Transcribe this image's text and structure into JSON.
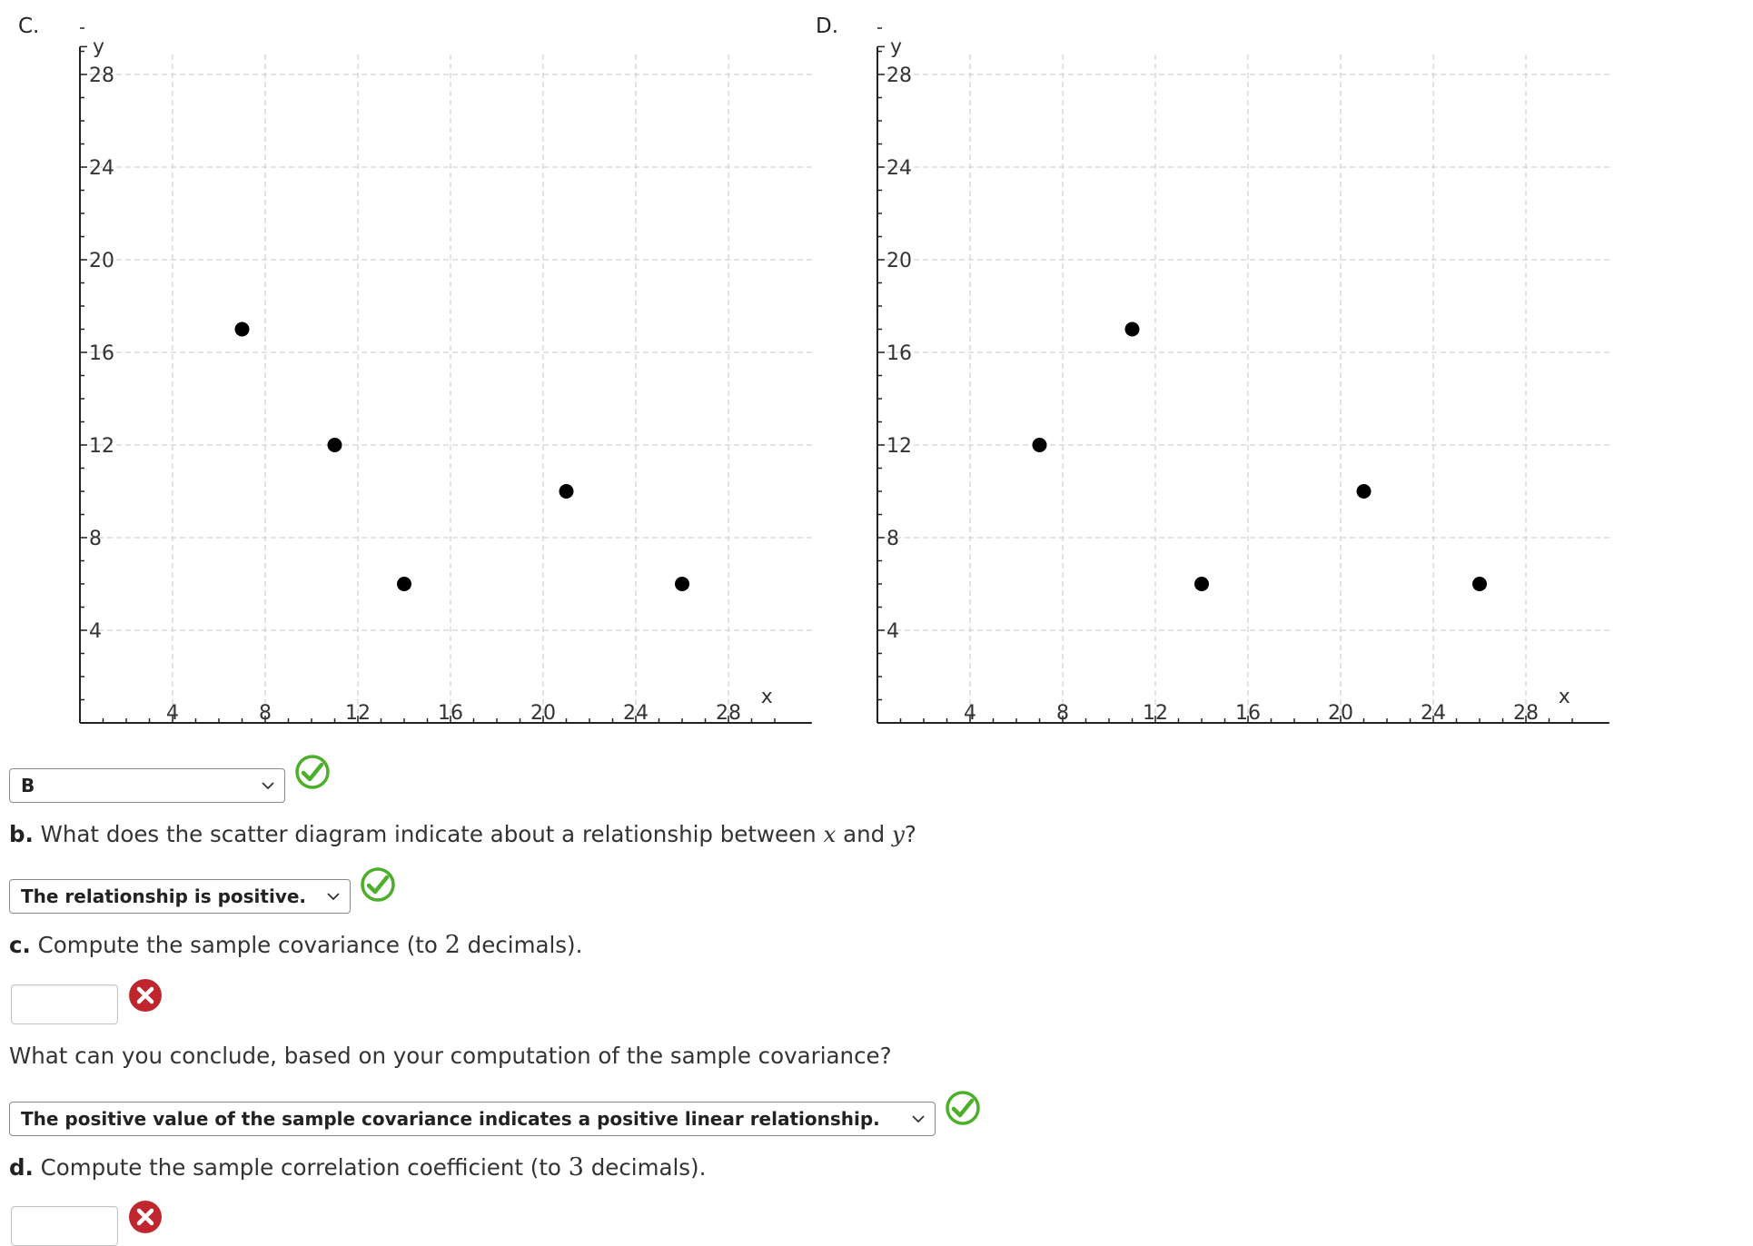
{
  "charts": {
    "C": {
      "label": "C.",
      "ylabel": "y",
      "xlabel": "x"
    },
    "D": {
      "label": "D.",
      "ylabel": "y",
      "xlabel": "x"
    }
  },
  "chart_data": [
    {
      "type": "scatter",
      "title": "C.",
      "xlabel": "x",
      "ylabel": "y",
      "xlim": [
        0,
        30
      ],
      "ylim": [
        0,
        30
      ],
      "xticks": [
        4,
        8,
        12,
        16,
        20,
        24,
        28
      ],
      "yticks": [
        4,
        8,
        12,
        16,
        20,
        24,
        28
      ],
      "grid": true,
      "points": [
        [
          7,
          17
        ],
        [
          11,
          12
        ],
        [
          14,
          6
        ],
        [
          21,
          10
        ],
        [
          26,
          6
        ]
      ]
    },
    {
      "type": "scatter",
      "title": "D.",
      "xlabel": "x",
      "ylabel": "y",
      "xlim": [
        0,
        30
      ],
      "ylim": [
        0,
        30
      ],
      "xticks": [
        4,
        8,
        12,
        16,
        20,
        24,
        28
      ],
      "yticks": [
        4,
        8,
        12,
        16,
        20,
        24,
        28
      ],
      "grid": true,
      "points": [
        [
          7,
          12
        ],
        [
          11,
          17
        ],
        [
          14,
          6
        ],
        [
          21,
          10
        ],
        [
          26,
          6
        ]
      ]
    }
  ],
  "part_a": {
    "selected": "B",
    "status": "correct"
  },
  "part_b": {
    "prefix": "b.",
    "question_text": "What does the scatter diagram indicate about a relationship between",
    "var_x": "x",
    "and_text": "and",
    "var_y": "y",
    "question_end": "?",
    "selected": "The relationship is positive.",
    "status": "correct"
  },
  "part_c": {
    "prefix": "c.",
    "question_text": "Compute the sample covariance (to",
    "decimals": "2",
    "question_end": "decimals).",
    "input_value": "",
    "status": "incorrect",
    "follow_up": "What can you conclude, based on your computation of the sample covariance?",
    "follow_up_selected": "The positive value of the sample covariance indicates a positive linear relationship.",
    "follow_up_status": "correct"
  },
  "part_d": {
    "prefix": "d.",
    "question_text": "Compute the sample correlation coefficient (to",
    "decimals": "3",
    "question_end": "decimals).",
    "input_value": "",
    "status": "incorrect"
  },
  "colors": {
    "correct": "#4caf2a",
    "incorrect": "#c0262d",
    "point": "#000000",
    "grid": "#d4d4d4"
  }
}
